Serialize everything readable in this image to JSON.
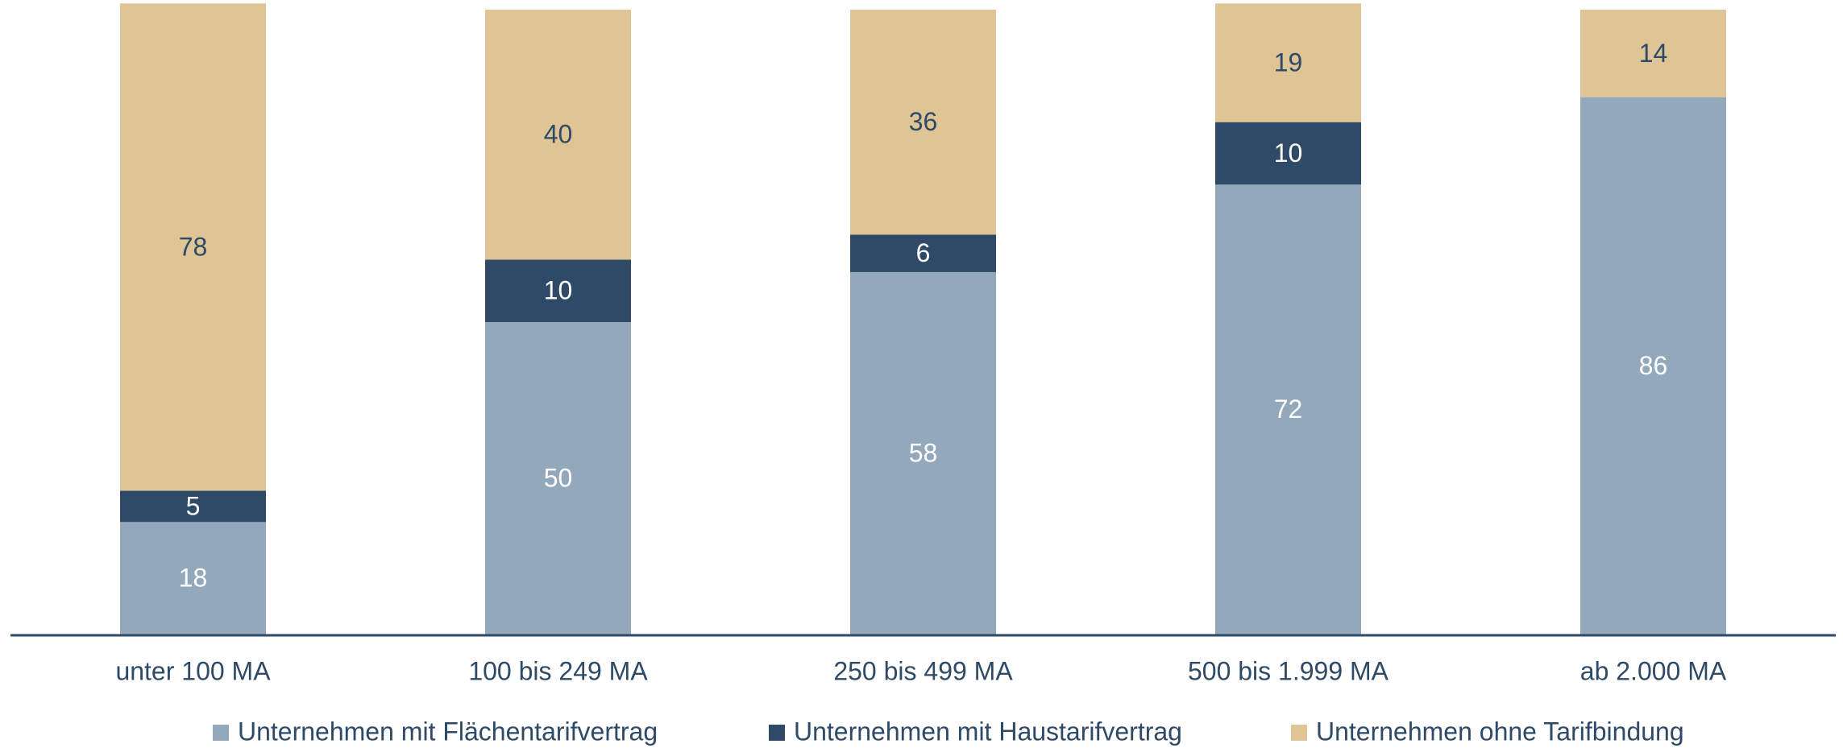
{
  "chart_data": {
    "type": "stacked_bar",
    "categories": [
      "unter 100 MA",
      "100 bis 249 MA",
      "250 bis 499 MA",
      "500 bis 1.999 MA",
      "ab 2.000 MA"
    ],
    "series": [
      {
        "name": "Unternehmen mit Flächentarifvertrag",
        "color": "#94a8bc",
        "label_color": "#ffffff",
        "values": [
          18,
          50,
          58,
          72,
          86
        ]
      },
      {
        "name": "Unternehmen mit Haustarifvertrag",
        "color": "#2e4a66",
        "label_color": "#ffffff",
        "values": [
          5,
          10,
          6,
          10,
          null
        ]
      },
      {
        "name": "Unternehmen ohne Tarifbindung",
        "color": "#dfc495",
        "label_color": "#2e4a66",
        "values": [
          78,
          40,
          36,
          19,
          14
        ]
      }
    ],
    "ylim": [
      0,
      100
    ],
    "legend": "bottom"
  }
}
